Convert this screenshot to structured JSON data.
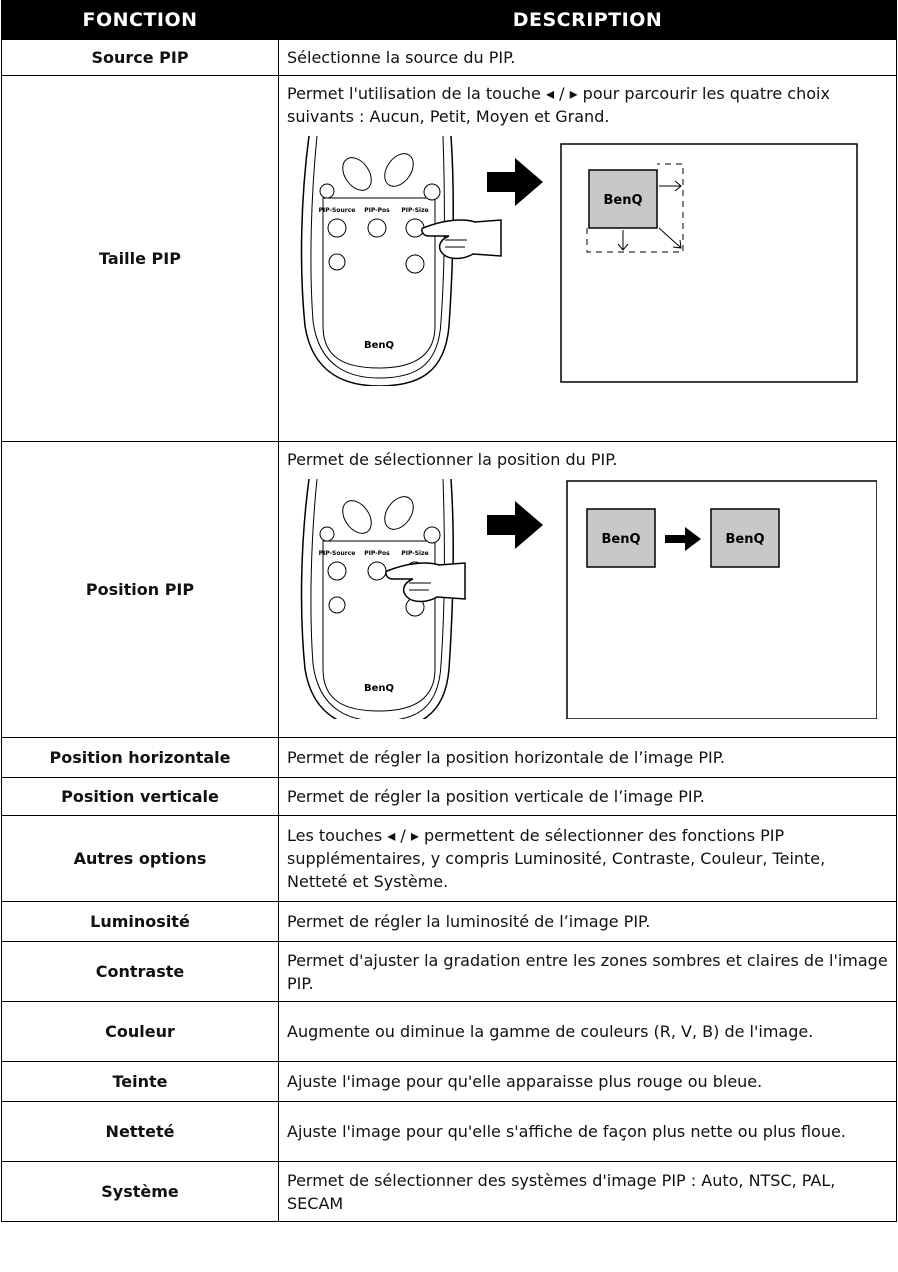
{
  "table": {
    "header": [
      "FONCTION",
      "DESCRIPTION"
    ],
    "rows": [
      {
        "function": "Source PIP",
        "description": "Sélectionne la source du PIP."
      },
      {
        "function": "Taille PIP",
        "description": "Permet l'utilisation de la touche ◂ / ▸ pour parcourir les quatre choix suivants : Aucun, Petit, Moyen et Grand.",
        "figure": {
          "buttons": [
            "PIP-Source",
            "PIP-Pos",
            "PIP-Size"
          ],
          "remote_logo": "BenQ",
          "screen_logos": [
            "BenQ"
          ]
        }
      },
      {
        "function": "Position PIP",
        "description": "Permet de sélectionner la position du PIP.",
        "figure": {
          "buttons": [
            "PIP-Source",
            "PIP-Pos",
            "PIP-Size"
          ],
          "remote_logo": "BenQ",
          "screen_logos": [
            "BenQ",
            "BenQ"
          ]
        }
      },
      {
        "function": "Position horizontale",
        "description": "Permet de régler la position horizontale de l’image PIP."
      },
      {
        "function": "Position verticale",
        "description": "Permet de régler la position verticale de l’image PIP."
      },
      {
        "function": "Autres options",
        "description": "Les touches ◂ / ▸ permettent de sélectionner des fonctions PIP supplémentaires, y compris Luminosité, Contraste, Couleur, Teinte, Netteté et Système."
      },
      {
        "function": "Luminosité",
        "description": "Permet de régler la luminosité de l’image PIP."
      },
      {
        "function": "Contraste",
        "description": "Permet d'ajuster la gradation entre les zones sombres et claires de l'image PIP."
      },
      {
        "function": "Couleur",
        "description": "Augmente ou diminue la gamme de couleurs (R, V, B) de l'image."
      },
      {
        "function": "Teinte",
        "description": "Ajuste l'image pour qu'elle apparaisse plus rouge ou bleue."
      },
      {
        "function": "Netteté",
        "description": "Ajuste l'image pour qu'elle s'affiche de façon plus nette ou plus floue."
      },
      {
        "function": "Système",
        "description": "Permet de sélectionner des systèmes d'image PIP : Auto, NTSC, PAL, SECAM"
      }
    ]
  }
}
